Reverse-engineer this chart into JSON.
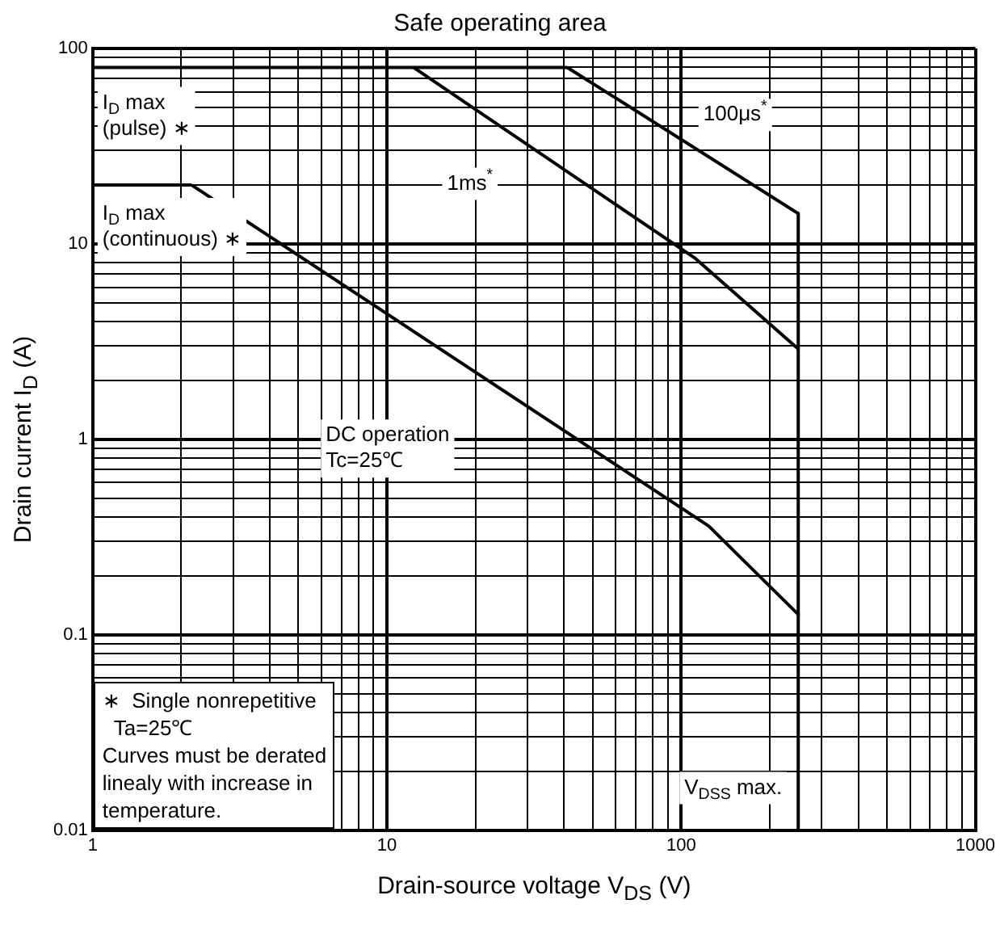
{
  "chart_data": {
    "type": "line",
    "title": "Safe operating area",
    "xlabel": "Drain-source voltage  V$_{DS}$ (V)",
    "ylabel": "Drain current  I$_{D}$ (A)",
    "log": "xy",
    "grid": true,
    "legend": false,
    "marker": "none",
    "line_style": "solid",
    "xlim": [
      1,
      1000
    ],
    "ylim": [
      0.01,
      100
    ],
    "xticks": [
      1,
      {
        "value": 2,
        "label": null
      },
      {
        "value": 3,
        "label": null
      },
      {
        "value": 4,
        "label": null
      },
      {
        "value": 5,
        "label": null
      },
      {
        "value": 6,
        "label": null
      },
      {
        "value": 7,
        "label": null
      },
      {
        "value": 8,
        "label": null
      },
      {
        "value": 9,
        "label": null
      },
      10,
      {
        "value": 20,
        "label": null
      },
      {
        "value": 30,
        "label": null
      },
      {
        "value": 40,
        "label": null
      },
      {
        "value": 50,
        "label": null
      },
      {
        "value": 60,
        "label": null
      },
      {
        "value": 70,
        "label": null
      },
      {
        "value": 80,
        "label": null
      },
      {
        "value": 90,
        "label": null
      },
      100,
      {
        "value": 200,
        "label": null
      },
      {
        "value": 300,
        "label": null
      },
      {
        "value": 400,
        "label": null
      },
      {
        "value": 500,
        "label": null
      },
      {
        "value": 600,
        "label": null
      },
      {
        "value": 700,
        "label": null
      },
      {
        "value": 800,
        "label": null
      },
      {
        "value": 900,
        "label": null
      },
      1000
    ],
    "yticks": [
      0.01,
      {
        "value": 0.02,
        "label": null
      },
      {
        "value": 0.03,
        "label": null
      },
      {
        "value": 0.04,
        "label": null
      },
      {
        "value": 0.05,
        "label": null
      },
      {
        "value": 0.06,
        "label": null
      },
      {
        "value": 0.07,
        "label": null
      },
      {
        "value": 0.08,
        "label": null
      },
      {
        "value": 0.09,
        "label": null
      },
      0.1,
      {
        "value": 0.2,
        "label": null
      },
      {
        "value": 0.3,
        "label": null
      },
      {
        "value": 0.4,
        "label": null
      },
      {
        "value": 0.5,
        "label": null
      },
      {
        "value": 0.6,
        "label": null
      },
      {
        "value": 0.7,
        "label": null
      },
      {
        "value": 0.8,
        "label": null
      },
      {
        "value": 0.9,
        "label": null
      },
      1,
      {
        "value": 2,
        "label": null
      },
      {
        "value": 3,
        "label": null
      },
      {
        "value": 4,
        "label": null
      },
      {
        "value": 5,
        "label": null
      },
      {
        "value": 6,
        "label": null
      },
      {
        "value": 7,
        "label": null
      },
      {
        "value": 8,
        "label": null
      },
      {
        "value": 9,
        "label": null
      },
      10,
      {
        "value": 20,
        "label": null
      },
      {
        "value": 30,
        "label": null
      },
      {
        "value": 40,
        "label": null
      },
      {
        "value": 50,
        "label": null
      },
      {
        "value": 60,
        "label": null
      },
      {
        "value": 70,
        "label": null
      },
      {
        "value": 80,
        "label": null
      },
      {
        "value": 90,
        "label": null
      },
      100
    ],
    "series": [
      {
        "name": "I$_{D}$ max\n(pulse) ∗",
        "color": "#000000",
        "x": [
          1,
          41
        ],
        "values": [
          80,
          80
        ]
      },
      {
        "name": "100μs$^{*}$",
        "color": "#000000",
        "x": [
          41,
          250
        ],
        "values": [
          80,
          14.3
        ]
      },
      {
        "name": "1ms$^{*}$",
        "color": "#000000",
        "x": [
          12.3,
          112,
          250
        ],
        "values": [
          80,
          8.4,
          2.9
        ]
      },
      {
        "name": "I$_{D}$ max\n(continuous) ∗",
        "color": "#000000",
        "x": [
          1,
          2.17
        ],
        "values": [
          20,
          20
        ]
      },
      {
        "name": "DC operation\nTc=25℃",
        "color": "#000000",
        "x": [
          2.17,
          124,
          250
        ],
        "values": [
          20,
          0.36,
          0.127
        ]
      },
      {
        "name": "V$_{DSS}$ max.",
        "color": "#000000",
        "x": [
          250,
          250
        ],
        "values": [
          14.3,
          0.01
        ]
      }
    ],
    "annotations": [
      "∗  Single nonrepetitive\n  Ta=25℃\nCurves must be derated\nlinealy with increase in\ntemperature."
    ]
  }
}
